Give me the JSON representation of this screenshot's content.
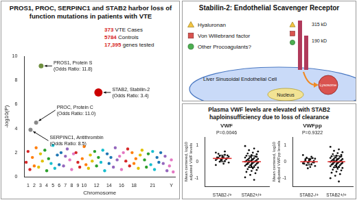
{
  "panels": {
    "left": {
      "title": "PROS1, PROC, SERPINC1 and STAB2 harbor loss of function mutations in patients with VTE",
      "stats": [
        {
          "number": "373",
          "text": "VTE Cases"
        },
        {
          "number": "5784",
          "text": "Controls"
        },
        {
          "number": "17,395",
          "text": "genes tested"
        }
      ]
    },
    "top_right": {
      "title": "Stabilin-2: Endothelial Scavenger Receptor",
      "legend": [
        {
          "shape": "triangle",
          "label": "Hyaluronan"
        },
        {
          "shape": "square",
          "label": "Von Willebrand factor"
        },
        {
          "shape": "circle",
          "label": "Other Procoagulants?"
        }
      ],
      "sizes": [
        "315 kD",
        "190 kD"
      ],
      "cell": "Liver Sinusoidal Endothelial Cell",
      "nucleus": "Nucleus",
      "lysosome": "Lysosome"
    },
    "bottom_right": {
      "title": "Plasma VWF levels are elevated with STAB2 haploinsufficiency due to loss of clearance"
    }
  },
  "chart_data": [
    {
      "type": "scatter",
      "x": [
        0.7,
        1.0,
        1.3,
        1.7,
        2.0,
        2.3,
        2.7,
        3.0,
        3.3,
        3.7,
        4.0,
        4.3,
        4.7,
        5.0,
        5.3,
        5.7,
        6.0,
        6.3,
        6.7,
        7.0,
        7.3,
        7.7,
        8.0,
        8.3,
        8.7,
        9.0,
        9.3,
        9.7,
        10.0,
        10.3,
        10.7,
        11.0,
        11.3,
        11.7,
        12.0,
        12.3,
        12.7,
        13.0,
        13.3,
        13.7,
        14.0,
        14.3,
        14.7,
        15.0,
        15.3,
        15.7,
        16.0,
        16.3,
        16.7,
        17.0,
        17.3,
        17.7,
        18.0,
        18.3,
        18.7,
        19.0,
        19.3,
        19.7,
        20.0,
        20.3,
        20.7,
        21.0,
        21.3,
        21.7,
        22.0,
        22.3,
        22.7,
        23.0,
        23.3,
        23.7,
        24.0,
        24.3
      ],
      "values": [
        1.2,
        2.1,
        0.6,
        1.6,
        0.9,
        2.4,
        0.8,
        1.9,
        1.3,
        2.2,
        0.5,
        1.5,
        1.1,
        2.6,
        0.7,
        1.8,
        1.0,
        2.0,
        0.9,
        1.7,
        2.3,
        1.4,
        0.6,
        1.9,
        2.0,
        1.2,
        0.8,
        1.5,
        2.5,
        1.0,
        0.7,
        1.8,
        1.3,
        2.1,
        0.9,
        1.6,
        1.2,
        2.2,
        0.5,
        1.9,
        1.1,
        1.6,
        0.8,
        2.4,
        1.4,
        1.7,
        0.6,
        2.0,
        1.3,
        2.3,
        0.9,
        2.0,
        1.1,
        1.5,
        0.7,
        1.8,
        2.2,
        1.4,
        0.8,
        1.9,
        1.0,
        2.1,
        0.6,
        1.6,
        1.2,
        2.0,
        1.1,
        1.7,
        0.5,
        0.9,
        1.4,
        0.4
      ],
      "colors": [
        "#d62728",
        "#d62728",
        "#d62728",
        "#ff7f0e",
        "#ff7f0e",
        "#ff7f0e",
        "#e0c000",
        "#e0c000",
        "#e0c000",
        "#2ca02c",
        "#2ca02c",
        "#2ca02c",
        "#17becf",
        "#17becf",
        "#17becf",
        "#1f77b4",
        "#1f77b4",
        "#1f77b4",
        "#9467bd",
        "#9467bd",
        "#9467bd",
        "#e377c2",
        "#e377c2",
        "#e377c2",
        "#d62728",
        "#d62728",
        "#d62728",
        "#ff7f0e",
        "#ff7f0e",
        "#ff7f0e",
        "#e0c000",
        "#e0c000",
        "#e0c000",
        "#2ca02c",
        "#2ca02c",
        "#2ca02c",
        "#17becf",
        "#17becf",
        "#17becf",
        "#1f77b4",
        "#1f77b4",
        "#1f77b4",
        "#9467bd",
        "#9467bd",
        "#9467bd",
        "#e377c2",
        "#e377c2",
        "#e377c2",
        "#d62728",
        "#d62728",
        "#d62728",
        "#ff7f0e",
        "#ff7f0e",
        "#ff7f0e",
        "#e0c000",
        "#e0c000",
        "#e0c000",
        "#2ca02c",
        "#2ca02c",
        "#2ca02c",
        "#17becf",
        "#17becf",
        "#17becf",
        "#1f77b4",
        "#1f77b4",
        "#1f77b4",
        "#9467bd",
        "#9467bd",
        "#9467bd",
        "#e377c2",
        "#e377c2",
        "#e377c2"
      ],
      "xlim": [
        0.4,
        24.6
      ],
      "xticks": [
        1,
        2,
        3,
        4,
        5,
        6,
        7,
        8,
        9,
        10,
        12,
        14,
        16,
        18,
        21,
        {
          "value": 24,
          "label": "Y"
        }
      ],
      "ylim": [
        0,
        10
      ],
      "yticks": [
        0,
        2,
        4,
        6,
        8,
        10
      ],
      "x_label": "Chromosome",
      "y_label": "-log10(P)",
      "grid": false,
      "annotations": [
        {
          "label": "PROS1, Protein S",
          "detail": "(Odds Ratio: 11.8)",
          "x": 3.1,
          "y": 9.2,
          "color": "#6f8f3f"
        },
        {
          "label": "STAB2, Stabilin-2",
          "detail": "(Odds Ratio: 3.4)",
          "x": 12.3,
          "y": 7.0,
          "color": "#cc0000"
        },
        {
          "label": "PROC, Protein C",
          "detail": "(Odds Ratio: 11.0)",
          "x": 2.3,
          "y": 4.5,
          "color": "#888888"
        },
        {
          "label": "SERPINC1, Antithrombin",
          "detail": "(Odds Ratio: 8.5)",
          "x": 1.4,
          "y": 3.9,
          "color": "#888888"
        }
      ]
    },
    {
      "type": "strip",
      "title": "VWF",
      "subtitle": "P=0.0046",
      "categories": [
        "STAB2-/+",
        "STAB2+/+"
      ],
      "groups": [
        [
          0.55,
          0.42,
          0.35,
          0.31,
          0.28,
          0.25,
          0.22,
          0.2,
          0.18,
          0.15,
          0.12,
          0.1,
          0.05,
          0.0,
          -0.05,
          -0.12,
          0.48,
          0.38,
          0.3,
          0.26,
          0.18,
          0.08,
          -0.2,
          0.62
        ],
        [
          0.95,
          0.8,
          0.7,
          0.62,
          0.55,
          0.5,
          0.45,
          0.4,
          0.36,
          0.32,
          0.28,
          0.25,
          0.22,
          0.2,
          0.17,
          0.15,
          0.12,
          0.1,
          0.08,
          0.06,
          0.04,
          0.02,
          0.0,
          -0.02,
          -0.04,
          -0.06,
          -0.08,
          -0.1,
          -0.12,
          -0.15,
          -0.17,
          -0.2,
          -0.22,
          -0.25,
          -0.28,
          -0.32,
          -0.36,
          -0.4,
          -0.45,
          -0.5,
          -0.56,
          -0.62,
          -0.7,
          -0.8,
          -0.95,
          -1.1,
          0.05,
          -0.03,
          0.13,
          -0.13,
          0.3,
          -0.3
        ]
      ],
      "means": [
        0.2,
        0.0
      ],
      "sd": [
        0.2,
        0.35
      ],
      "ylim": [
        -1.5,
        1.5
      ],
      "yticks": [
        -1,
        0,
        1
      ],
      "y_label": [
        "Mean centered, log10",
        "adjusted VWF levels"
      ],
      "color": "#111111",
      "grid": false
    },
    {
      "type": "strip",
      "title": "VWFpp",
      "subtitle": "P=0.9322",
      "categories": [
        "STAB2-/+",
        "STAB2+/+"
      ],
      "groups": [
        [
          0.4,
          0.3,
          0.25,
          0.18,
          0.12,
          0.08,
          0.05,
          0.02,
          0.0,
          -0.03,
          -0.06,
          -0.1,
          -0.15,
          -0.2,
          -0.26,
          -0.32,
          0.15,
          -0.05,
          0.1,
          -0.12,
          0.22,
          -0.4
        ],
        [
          0.9,
          0.75,
          0.66,
          0.58,
          0.52,
          0.46,
          0.41,
          0.37,
          0.33,
          0.29,
          0.26,
          0.23,
          0.2,
          0.18,
          0.16,
          0.13,
          0.11,
          0.09,
          0.07,
          0.05,
          0.03,
          0.01,
          -0.01,
          -0.03,
          -0.05,
          -0.07,
          -0.09,
          -0.11,
          -0.13,
          -0.16,
          -0.18,
          -0.21,
          -0.24,
          -0.27,
          -0.3,
          -0.34,
          -0.38,
          -0.43,
          -0.48,
          -0.53,
          -0.6,
          -0.67,
          -0.75,
          -0.85,
          -1.0,
          -1.2,
          0.06,
          -0.02,
          0.15,
          -0.14,
          0.32,
          -0.28
        ]
      ],
      "means": [
        0.0,
        0.0
      ],
      "sd": [
        0.2,
        0.35
      ],
      "ylim": [
        -1.5,
        1.5
      ],
      "yticks": [
        -1,
        0,
        1
      ],
      "y_label": [
        "Mean centered, log10",
        "adjusted VWFpp levels"
      ],
      "color": "#111111",
      "grid": false
    }
  ]
}
